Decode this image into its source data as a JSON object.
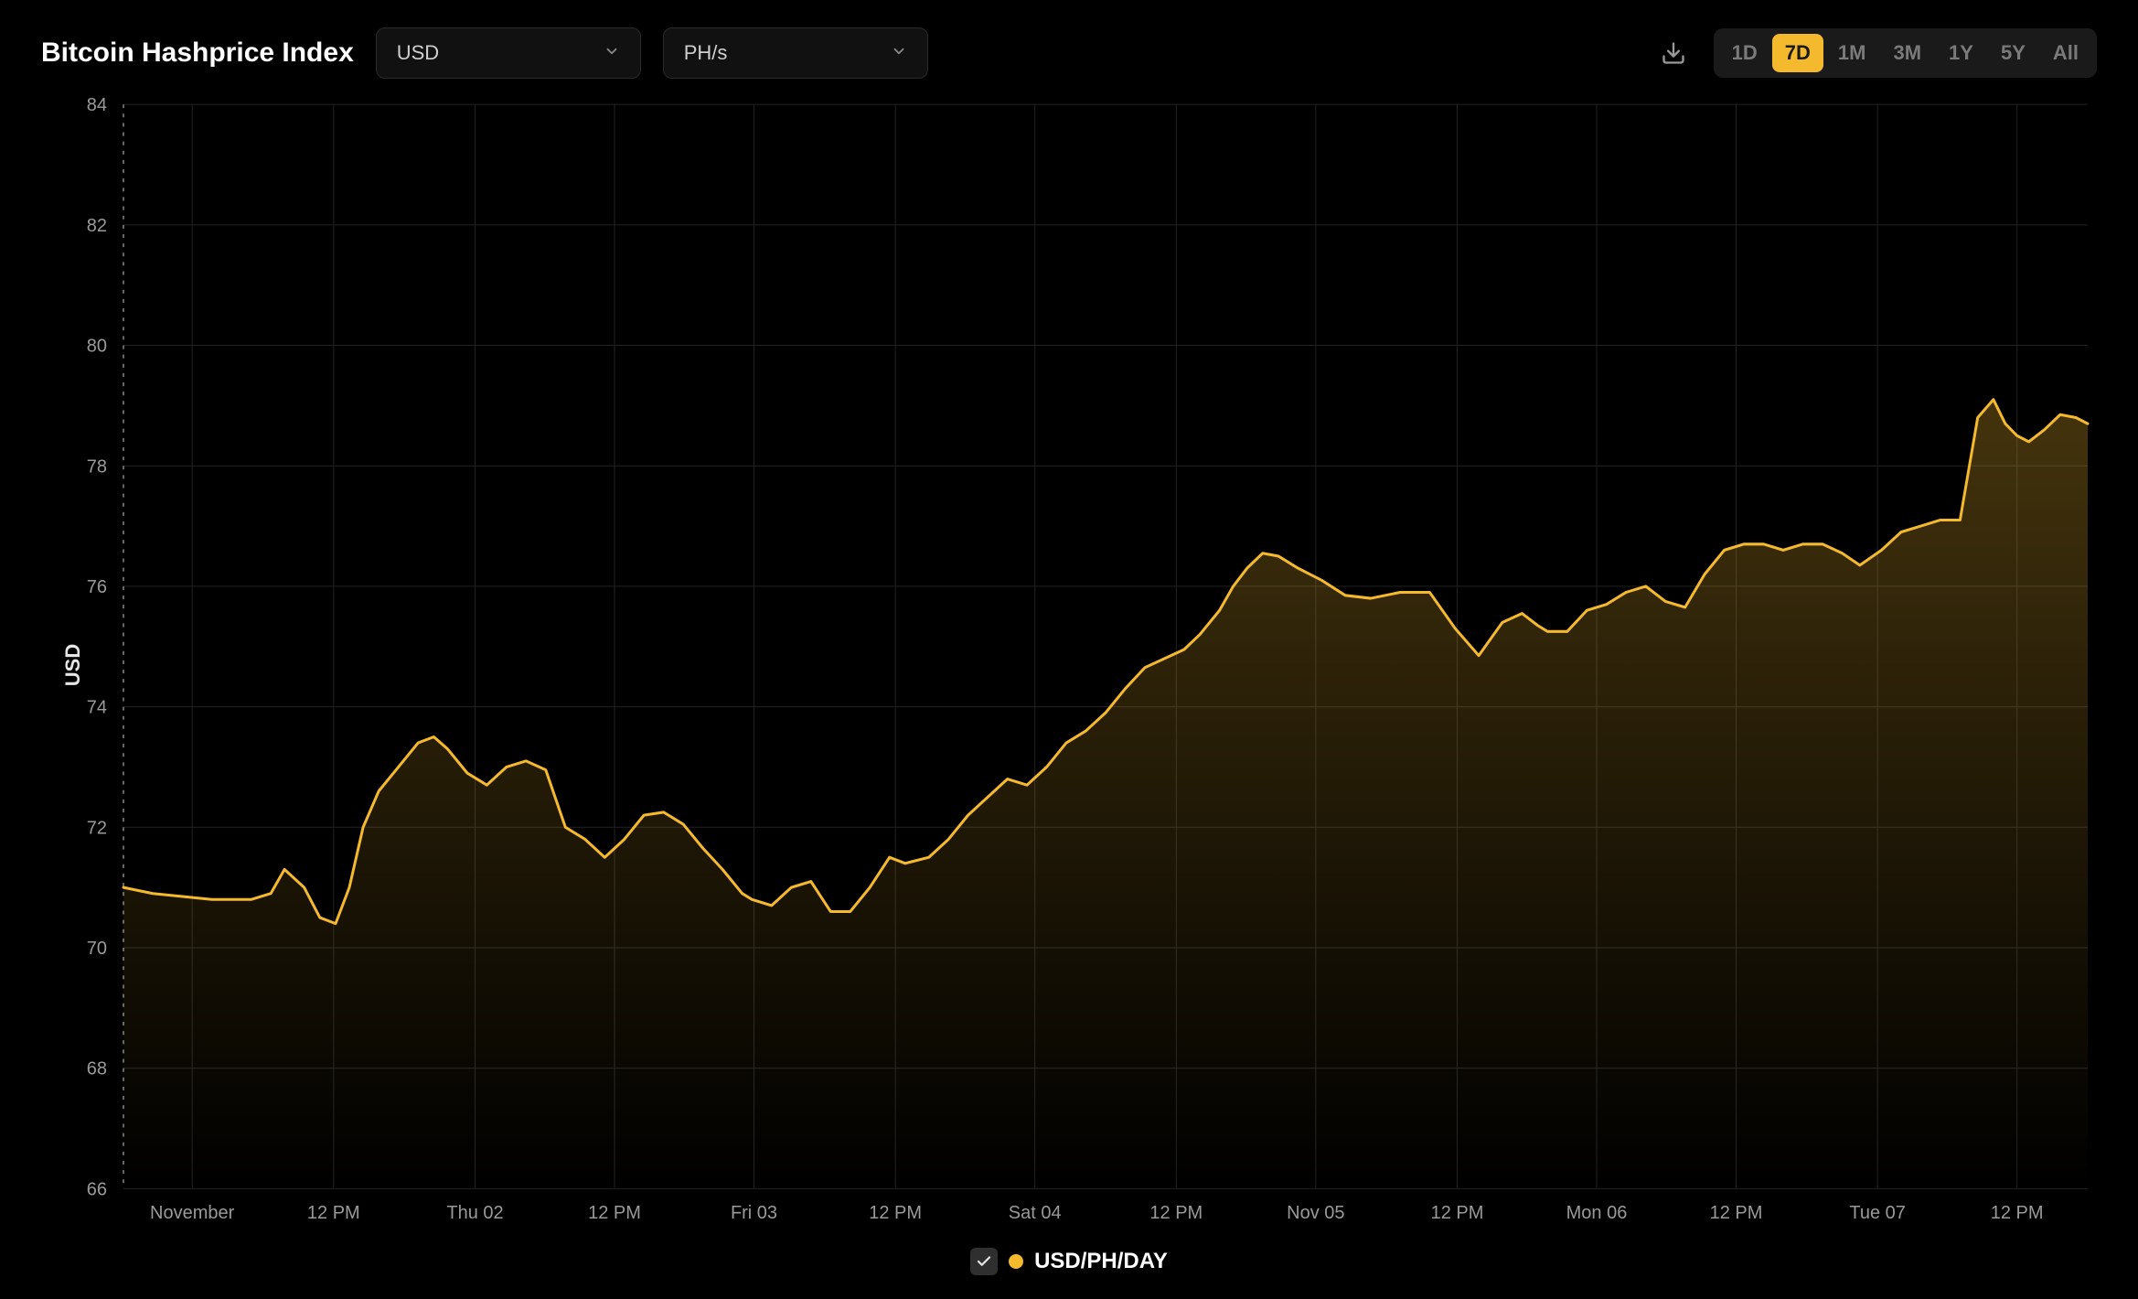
{
  "title": "Bitcoin Hashprice Index",
  "currency_select": {
    "value": "USD"
  },
  "unit_select": {
    "value": "PH/s"
  },
  "ranges": [
    "1D",
    "7D",
    "1M",
    "3M",
    "1Y",
    "5Y",
    "All"
  ],
  "active_range": "7D",
  "yaxis": {
    "title": "USD",
    "min": 66,
    "max": 84,
    "step": 2,
    "ticks": [
      66,
      68,
      70,
      72,
      74,
      76,
      78,
      80,
      82,
      84
    ],
    "tick_fontsize": 20,
    "tick_color": "#9a9a9a"
  },
  "xaxis": {
    "labels": [
      "November",
      "12 PM",
      "Thu 02",
      "12 PM",
      "Fri 03",
      "12 PM",
      "Sat 04",
      "12 PM",
      "Nov 05",
      "12 PM",
      "Mon 06",
      "12 PM",
      "Tue 07",
      "12 PM"
    ],
    "positions": [
      0.035,
      0.107,
      0.179,
      0.25,
      0.321,
      0.393,
      0.464,
      0.536,
      0.607,
      0.679,
      0.75,
      0.821,
      0.893,
      0.964
    ],
    "gridlines": [
      0.035,
      0.107,
      0.179,
      0.25,
      0.321,
      0.393,
      0.464,
      0.536,
      0.607,
      0.679,
      0.75,
      0.821,
      0.893,
      0.964
    ],
    "tick_fontsize": 20,
    "tick_color": "#9a9a9a"
  },
  "legend": {
    "checked": true,
    "label": "USD/PH/DAY",
    "dot_color": "#f5b92e"
  },
  "chart": {
    "type": "area",
    "line_color": "#f5b92e",
    "line_width": 3,
    "fill_top_color": "rgba(245,185,46,0.28)",
    "fill_bottom_color": "rgba(245,185,46,0.0)",
    "background_color": "#000000",
    "grid_color": "#222222",
    "dashed_start_color": "#888888",
    "series": {
      "x": [
        0.0,
        0.015,
        0.03,
        0.045,
        0.055,
        0.065,
        0.075,
        0.082,
        0.092,
        0.1,
        0.108,
        0.115,
        0.122,
        0.13,
        0.14,
        0.15,
        0.158,
        0.165,
        0.175,
        0.185,
        0.195,
        0.205,
        0.215,
        0.225,
        0.235,
        0.245,
        0.255,
        0.265,
        0.275,
        0.285,
        0.295,
        0.305,
        0.315,
        0.32,
        0.33,
        0.34,
        0.35,
        0.36,
        0.37,
        0.38,
        0.39,
        0.398,
        0.41,
        0.42,
        0.43,
        0.44,
        0.45,
        0.46,
        0.47,
        0.48,
        0.49,
        0.5,
        0.51,
        0.52,
        0.53,
        0.54,
        0.548,
        0.558,
        0.565,
        0.572,
        0.58,
        0.588,
        0.598,
        0.61,
        0.622,
        0.635,
        0.65,
        0.665,
        0.678,
        0.69,
        0.702,
        0.712,
        0.72,
        0.725,
        0.735,
        0.745,
        0.755,
        0.765,
        0.775,
        0.785,
        0.795,
        0.805,
        0.815,
        0.825,
        0.835,
        0.845,
        0.855,
        0.865,
        0.875,
        0.884,
        0.895,
        0.905,
        0.915,
        0.925,
        0.935,
        0.944,
        0.952,
        0.958,
        0.964,
        0.97,
        0.978,
        0.986,
        0.994,
        1.0
      ],
      "y": [
        71.0,
        70.9,
        70.85,
        70.8,
        70.8,
        70.8,
        70.9,
        71.3,
        71.0,
        70.5,
        70.4,
        71.0,
        72.0,
        72.6,
        73.0,
        73.4,
        73.5,
        73.3,
        72.9,
        72.7,
        73.0,
        73.1,
        72.95,
        72.0,
        71.8,
        71.5,
        71.8,
        72.2,
        72.25,
        72.05,
        71.65,
        71.3,
        70.9,
        70.8,
        70.7,
        71.0,
        71.1,
        70.6,
        70.6,
        71.0,
        71.5,
        71.4,
        71.5,
        71.8,
        72.2,
        72.5,
        72.8,
        72.7,
        73.0,
        73.4,
        73.6,
        73.9,
        74.3,
        74.65,
        74.8,
        74.95,
        75.2,
        75.6,
        76.0,
        76.3,
        76.55,
        76.5,
        76.3,
        76.1,
        75.85,
        75.8,
        75.9,
        75.9,
        75.3,
        74.85,
        75.4,
        75.55,
        75.35,
        75.25,
        75.25,
        75.6,
        75.7,
        75.9,
        76.0,
        75.75,
        75.65,
        76.2,
        76.6,
        76.7,
        76.7,
        76.6,
        76.7,
        76.7,
        76.55,
        76.35,
        76.6,
        76.9,
        77.0,
        77.1,
        77.1,
        78.8,
        79.1,
        78.7,
        78.5,
        78.4,
        78.6,
        78.85,
        78.8,
        78.7
      ]
    }
  }
}
